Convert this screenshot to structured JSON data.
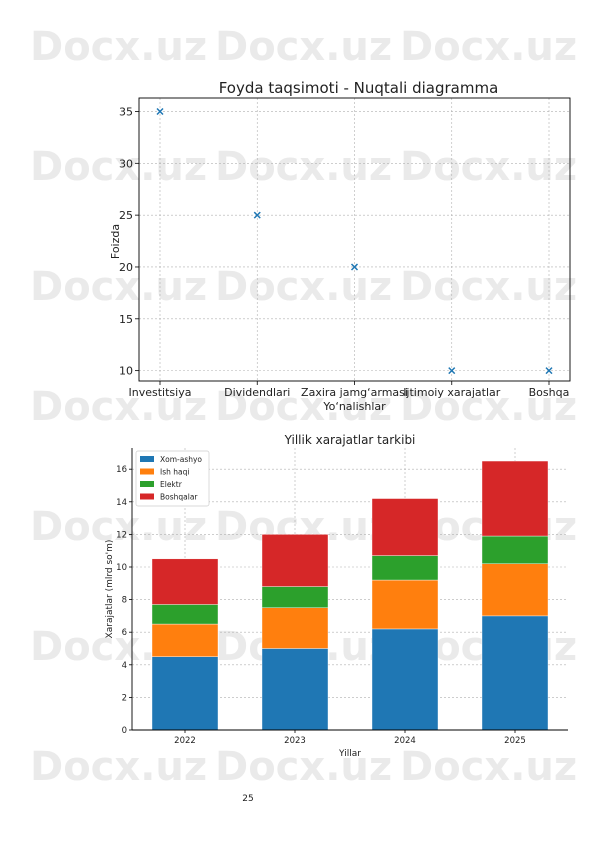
{
  "watermark": "Docx.uz",
  "page_number": "25",
  "chart_data": [
    {
      "type": "scatter",
      "title": "Foyda taqsimoti - Nuqtali diagramma",
      "xlabel": "Yo‘nalishlar",
      "ylabel": "Foizda",
      "categories": [
        "Investitsiya",
        "Dividendlari",
        "Zaxira jamg‘armasi",
        "Ijtimoiy xarajatlar",
        "Boshqa"
      ],
      "values": [
        35,
        25,
        20,
        10,
        10
      ],
      "ylim": [
        9,
        36.3
      ],
      "yticks": [
        10,
        15,
        20,
        25,
        30,
        35
      ],
      "marker": "x",
      "color": "#1f77b4",
      "grid": true
    },
    {
      "type": "bar",
      "stacked": true,
      "title": "Yillik xarajatlar tarkibi",
      "xlabel": "Yillar",
      "ylabel": "Xarajatlar (mlrd so'm)",
      "categories": [
        "2022",
        "2023",
        "2024",
        "2025"
      ],
      "series": [
        {
          "name": "Xom-ashyo",
          "values": [
            4.5,
            5.0,
            6.2,
            7.0
          ],
          "color": "#1f77b4"
        },
        {
          "name": "Ish haqi",
          "values": [
            2.0,
            2.5,
            3.0,
            3.2
          ],
          "color": "#ff7f0e"
        },
        {
          "name": "Elektr",
          "values": [
            1.2,
            1.3,
            1.5,
            1.7
          ],
          "color": "#2ca02c"
        },
        {
          "name": "Boshqalar",
          "values": [
            2.8,
            3.2,
            3.5,
            4.6
          ],
          "color": "#d62728"
        }
      ],
      "ylim": [
        0,
        17.3
      ],
      "yticks": [
        0,
        2,
        4,
        6,
        8,
        10,
        12,
        14,
        16
      ],
      "legend": "top-left",
      "grid": true
    }
  ]
}
